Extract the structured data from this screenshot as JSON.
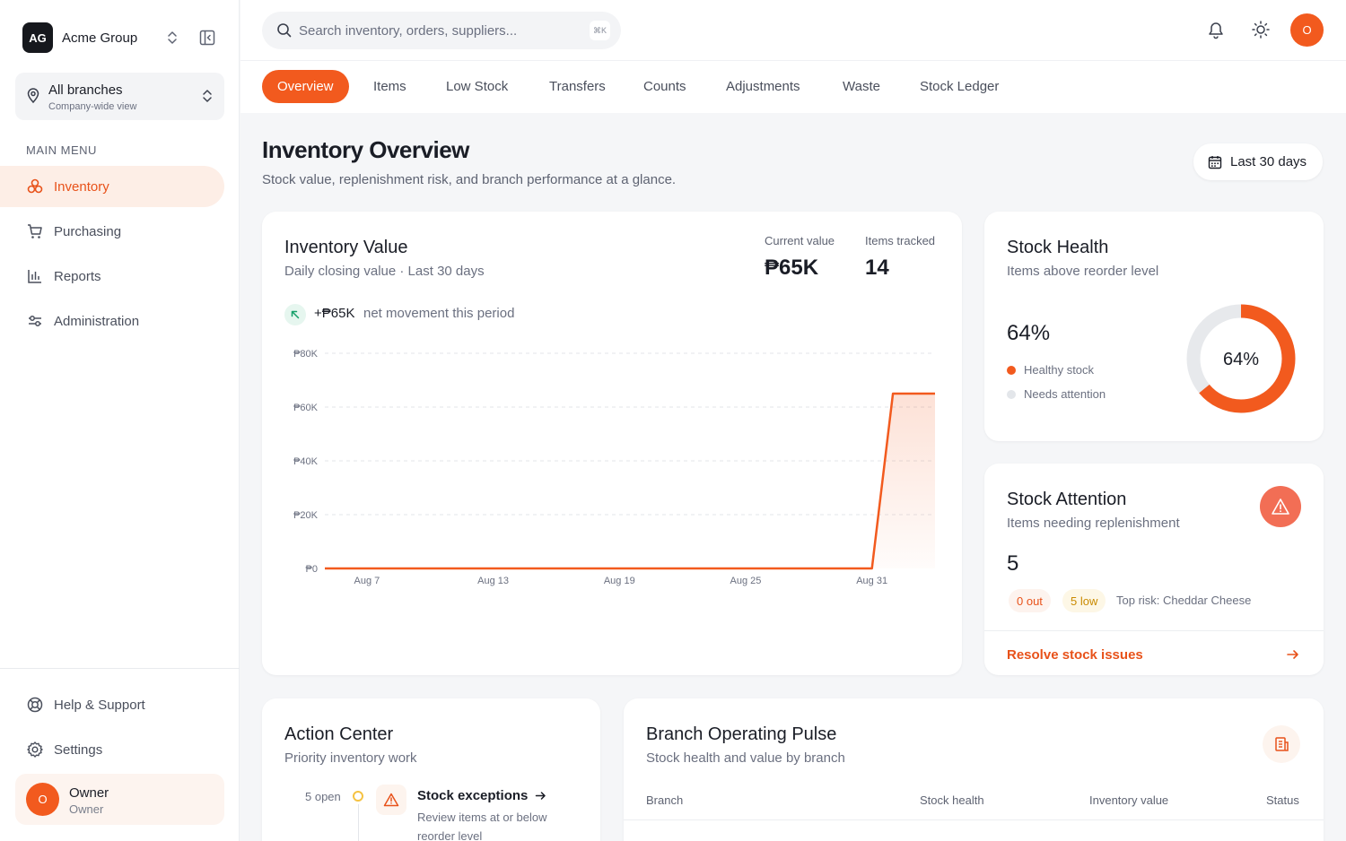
{
  "org": {
    "initials": "AG",
    "name": "Acme Group"
  },
  "branch": {
    "title": "All branches",
    "subtitle": "Company-wide view"
  },
  "sidebar": {
    "menu_label": "MAIN MENU",
    "items": [
      {
        "label": "Inventory",
        "icon": "boxes-icon",
        "active": true
      },
      {
        "label": "Purchasing",
        "icon": "cart-icon",
        "active": false
      },
      {
        "label": "Reports",
        "icon": "bar-chart-icon",
        "active": false
      },
      {
        "label": "Administration",
        "icon": "sliders-icon",
        "active": false
      }
    ],
    "bottom_items": [
      {
        "label": "Help & Support",
        "icon": "lifebuoy-icon"
      },
      {
        "label": "Settings",
        "icon": "gear-icon"
      }
    ],
    "user": {
      "initial": "O",
      "name": "Owner",
      "role": "Owner"
    }
  },
  "topbar": {
    "search_placeholder": "Search inventory, orders, suppliers...",
    "shortcut": "⌘K",
    "avatar_initial": "O"
  },
  "tabs": [
    "Overview",
    "Items",
    "Low Stock",
    "Transfers",
    "Counts",
    "Adjustments",
    "Waste",
    "Stock Ledger"
  ],
  "header": {
    "title": "Inventory Overview",
    "subtitle": "Stock value, replenishment risk, and branch performance at a glance.",
    "date_range": "Last 30 days"
  },
  "inventory_value": {
    "title": "Inventory Value",
    "subtitle": "Daily closing value · Last 30 days",
    "current_label": "Current value",
    "current_value": "₱65K",
    "tracked_label": "Items tracked",
    "tracked_value": "14",
    "net_amount": "+₱65K",
    "net_text": "net movement this period"
  },
  "chart_data": {
    "type": "area",
    "x": [
      "Aug 5",
      "Aug 6",
      "Aug 7",
      "Aug 8",
      "Aug 9",
      "Aug 10",
      "Aug 11",
      "Aug 12",
      "Aug 13",
      "Aug 14",
      "Aug 15",
      "Aug 16",
      "Aug 17",
      "Aug 18",
      "Aug 19",
      "Aug 20",
      "Aug 21",
      "Aug 22",
      "Aug 23",
      "Aug 24",
      "Aug 25",
      "Aug 26",
      "Aug 27",
      "Aug 28",
      "Aug 29",
      "Aug 30",
      "Aug 31",
      "Sep 1",
      "Sep 2",
      "Sep 3"
    ],
    "series": [
      {
        "values": [
          0,
          0,
          0,
          0,
          0,
          0,
          0,
          0,
          0,
          0,
          0,
          0,
          0,
          0,
          0,
          0,
          0,
          0,
          0,
          0,
          0,
          0,
          0,
          0,
          0,
          0,
          0,
          65000,
          65000,
          65000
        ],
        "color": "#f25a1e"
      }
    ],
    "x_ticks": [
      "Aug 7",
      "Aug 13",
      "Aug 19",
      "Aug 25",
      "Aug 31"
    ],
    "y_ticks": [
      "₱0",
      "₱20K",
      "₱40K",
      "₱60K",
      "₱80K"
    ],
    "ylim": [
      0,
      80000
    ],
    "grid": true
  },
  "stock_health": {
    "title": "Stock Health",
    "subtitle": "Items above reorder level",
    "percent_value": 64,
    "percent": "64%",
    "legend": [
      {
        "label": "Healthy stock",
        "color": "#f25a1e"
      },
      {
        "label": "Needs attention",
        "color": "#e3e6ea"
      }
    ]
  },
  "stock_attention": {
    "title": "Stock Attention",
    "subtitle": "Items needing replenishment",
    "count": "5",
    "out_pill": "0 out",
    "low_pill": "5 low",
    "top_risk": "Top risk: Cheddar Cheese",
    "resolve_label": "Resolve stock issues"
  },
  "action_center": {
    "title": "Action Center",
    "subtitle": "Priority inventory work",
    "open_label": "5 open",
    "item_title": "Stock exceptions",
    "item_desc": "Review items at or below reorder level"
  },
  "branch_pulse": {
    "title": "Branch Operating Pulse",
    "subtitle": "Stock health and value by branch",
    "columns": [
      "Branch",
      "Stock health",
      "Inventory value",
      "Status"
    ]
  },
  "colors": {
    "accent": "#f25a1e",
    "accent_soft": "#fdeee6",
    "warning": "#f5c242",
    "success": "#16a06a"
  }
}
